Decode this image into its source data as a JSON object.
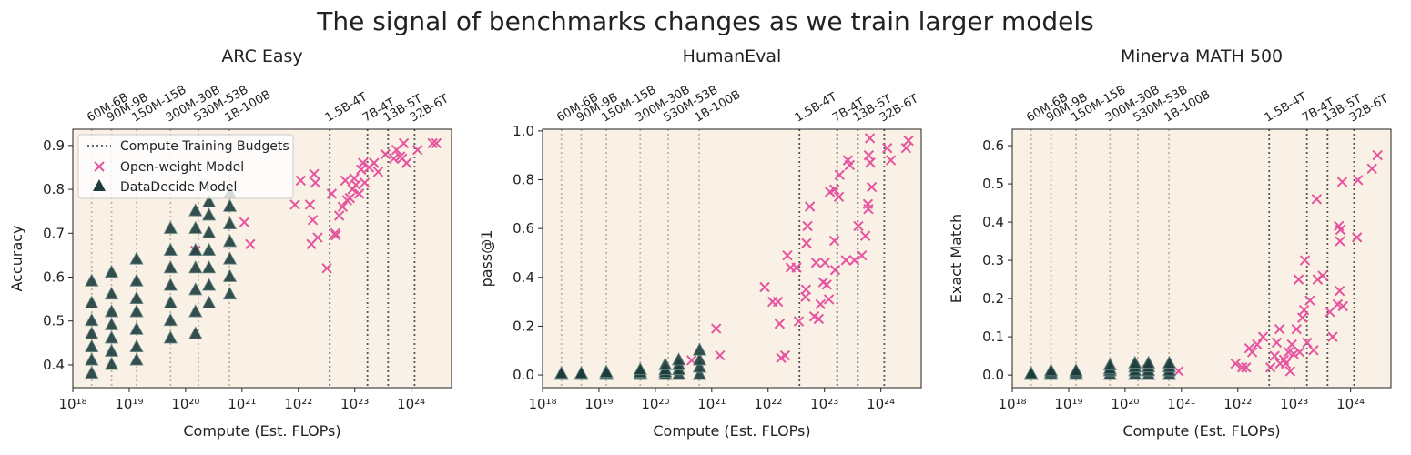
{
  "title": "The signal of benchmarks changes as we train larger models",
  "budget_label": "Compute Training Budgets",
  "budgets": [
    {
      "value": 2.16e+18,
      "label": "60M-6B",
      "color": "#c4b4a4"
    },
    {
      "value": 4.86e+18,
      "label": "90M-9B",
      "color": "#c4b4a4"
    },
    {
      "value": 1.35e+19,
      "label": "150M-15B",
      "color": "#c4b4a4"
    },
    {
      "value": 5.4e+19,
      "label": "300M-30B",
      "color": "#c4b4a4"
    },
    {
      "value": 1.69e+20,
      "label": "530M-53B",
      "color": "#c4b4a4"
    },
    {
      "value": 6e+20,
      "label": "1B-100B",
      "color": "#c4b4a4"
    },
    {
      "value": 3.6e+22,
      "label": "1.5B-4T",
      "color": "#555555"
    },
    {
      "value": 1.68e+23,
      "label": "7B-4T",
      "color": "#555555"
    },
    {
      "value": 3.9e+23,
      "label": "13B-5T",
      "color": "#555555"
    },
    {
      "value": 1.15e+24,
      "label": "32B-6T",
      "color": "#555555"
    }
  ],
  "chart_data": [
    {
      "type": "scatter",
      "title": "ARC Easy",
      "xlabel": "Compute (Est. FLOPs)",
      "ylabel": "Accuracy",
      "xscale": "log",
      "xlim": [
        1e+18,
        5.2e+24
      ],
      "xticks": [
        {
          "value": 1e+18,
          "label": "10¹⁸"
        },
        {
          "value": 1e+19,
          "label": "10¹⁹"
        },
        {
          "value": 1e+20,
          "label": "10²⁰"
        },
        {
          "value": 1e+21,
          "label": "10²¹"
        },
        {
          "value": 1e+22,
          "label": "10²²"
        },
        {
          "value": 1e+23,
          "label": "10²³"
        },
        {
          "value": 1e+24,
          "label": "10²⁴"
        }
      ],
      "ylim": [
        0.348,
        0.937
      ],
      "yticks": [
        0.4,
        0.5,
        0.6,
        0.7,
        0.8,
        0.9
      ],
      "legend": "upper left",
      "background": "#f9f0e6",
      "series": [
        {
          "name": "Open-weight Model",
          "marker": "x",
          "color": "#e5559f",
          "x": [
            1.5e+20,
            1.1e+21,
            1.4e+21,
            8.7e+21,
            1.1e+22,
            1.6e+22,
            1.7e+22,
            1.8e+22,
            1.9e+22,
            2e+22,
            2.2e+22,
            3.2e+22,
            3.9e+22,
            4.5e+22,
            4.6e+22,
            5.3e+22,
            6.1e+22,
            6.8e+22,
            7.3e+22,
            8.2e+22,
            9.1e+22,
            9.8e+22,
            1.05e+23,
            1.2e+23,
            1.3e+23,
            1.4e+23,
            1.5e+23,
            1.8e+23,
            2.2e+23,
            2.6e+23,
            3.5e+23,
            4.9e+23,
            5.5e+23,
            6.4e+23,
            6.9e+23,
            7.4e+23,
            8.3e+23,
            1.3e+24,
            2.4e+24,
            2.8e+24
          ],
          "values": [
            0.66,
            0.725,
            0.675,
            0.765,
            0.82,
            0.765,
            0.675,
            0.73,
            0.835,
            0.815,
            0.69,
            0.62,
            0.79,
            0.7,
            0.695,
            0.74,
            0.76,
            0.82,
            0.775,
            0.78,
            0.8,
            0.825,
            0.81,
            0.79,
            0.845,
            0.86,
            0.815,
            0.85,
            0.86,
            0.84,
            0.88,
            0.87,
            0.89,
            0.875,
            0.87,
            0.905,
            0.86,
            0.89,
            0.905,
            0.905
          ]
        },
        {
          "name": "DataDecide Model",
          "marker": "triangle",
          "color": "#1d3c3c",
          "x": [
            2.16e+18,
            2.16e+18,
            2.16e+18,
            2.16e+18,
            2.16e+18,
            2.16e+18,
            2.16e+18,
            4.86e+18,
            4.86e+18,
            4.86e+18,
            4.86e+18,
            4.86e+18,
            4.86e+18,
            4.86e+18,
            1.35e+19,
            1.35e+19,
            1.35e+19,
            1.35e+19,
            1.35e+19,
            1.35e+19,
            1.35e+19,
            5.4e+19,
            5.4e+19,
            5.4e+19,
            5.4e+19,
            5.4e+19,
            5.4e+19,
            5.4e+19,
            1.5e+20,
            1.5e+20,
            1.5e+20,
            1.5e+20,
            1.5e+20,
            1.5e+20,
            1.5e+20,
            2.6e+20,
            2.6e+20,
            2.6e+20,
            2.6e+20,
            2.6e+20,
            2.6e+20,
            2.6e+20,
            6.1e+20,
            6.1e+20,
            6.1e+20,
            6.1e+20,
            6.1e+20,
            6.1e+20,
            6.1e+20
          ],
          "values": [
            0.38,
            0.41,
            0.44,
            0.47,
            0.5,
            0.54,
            0.59,
            0.4,
            0.43,
            0.46,
            0.49,
            0.52,
            0.56,
            0.61,
            0.41,
            0.44,
            0.48,
            0.52,
            0.55,
            0.59,
            0.64,
            0.46,
            0.5,
            0.54,
            0.58,
            0.62,
            0.66,
            0.71,
            0.47,
            0.52,
            0.57,
            0.62,
            0.66,
            0.71,
            0.75,
            0.54,
            0.58,
            0.62,
            0.66,
            0.7,
            0.74,
            0.77,
            0.56,
            0.6,
            0.64,
            0.68,
            0.72,
            0.76,
            0.79
          ]
        }
      ]
    },
    {
      "type": "scatter",
      "title": "HumanEval",
      "xlabel": "Compute (Est. FLOPs)",
      "ylabel": "pass@1",
      "xscale": "log",
      "xlim": [
        1e+18,
        5.2e+24
      ],
      "xticks": [
        {
          "value": 1e+18,
          "label": "10¹⁸"
        },
        {
          "value": 1e+19,
          "label": "10¹⁹"
        },
        {
          "value": 1e+20,
          "label": "10²⁰"
        },
        {
          "value": 1e+21,
          "label": "10²¹"
        },
        {
          "value": 1e+22,
          "label": "10²²"
        },
        {
          "value": 1e+23,
          "label": "10²³"
        },
        {
          "value": 1e+24,
          "label": "10²⁴"
        }
      ],
      "ylim": [
        -0.052,
        1.007
      ],
      "yticks": [
        {
          "value": 0,
          "label": "0.0"
        },
        0.2,
        0.4,
        0.6,
        0.8,
        {
          "value": 1,
          "label": "1.0"
        }
      ],
      "background": "#f9f0e6",
      "series": [
        {
          "name": "Open-weight Model",
          "marker": "x",
          "color": "#e5559f",
          "x": [
            4.4e+20,
            1.2e+21,
            1.4e+21,
            8.7e+21,
            1.2e+22,
            1.5e+22,
            1.6e+22,
            1.7e+22,
            2e+22,
            2.2e+22,
            2.5e+22,
            3.2e+22,
            3.5e+22,
            4.7e+22,
            4.8e+22,
            5e+22,
            5.5e+22,
            4.6e+22,
            6.6e+22,
            7.1e+22,
            7.9e+22,
            8.5e+22,
            9.5e+22,
            1.02e+23,
            1.1e+23,
            1.2e+23,
            1.25e+23,
            1.5e+23,
            1.5e+23,
            1.55e+23,
            1.8e+23,
            1.85e+23,
            2.4e+23,
            2.6e+23,
            2.8e+23,
            3.4e+23,
            4e+23,
            4.6e+23,
            5.3e+23,
            5.9e+23,
            6e+23,
            6.1e+23,
            6.4e+23,
            6.5e+23,
            6.9e+23,
            1.3e+24,
            1.5e+24,
            2.8e+24,
            3.1e+24
          ],
          "values": [
            0.06,
            0.19,
            0.08,
            0.36,
            0.3,
            0.3,
            0.21,
            0.07,
            0.08,
            0.49,
            0.44,
            0.44,
            0.22,
            0.35,
            0.54,
            0.61,
            0.69,
            0.32,
            0.24,
            0.46,
            0.23,
            0.29,
            0.38,
            0.46,
            0.37,
            0.31,
            0.75,
            0.76,
            0.55,
            0.43,
            0.73,
            0.82,
            0.47,
            0.88,
            0.86,
            0.47,
            0.61,
            0.49,
            0.57,
            0.7,
            0.68,
            0.9,
            0.97,
            0.87,
            0.77,
            0.93,
            0.88,
            0.93,
            0.96
          ]
        },
        {
          "name": "DataDecide Model",
          "marker": "triangle",
          "color": "#1d3c3c",
          "x": [
            2.16e+18,
            2.16e+18,
            2.16e+18,
            2.16e+18,
            4.86e+18,
            4.86e+18,
            4.86e+18,
            4.86e+18,
            1.35e+19,
            1.35e+19,
            1.35e+19,
            1.35e+19,
            5.4e+19,
            5.4e+19,
            5.4e+19,
            5.4e+19,
            1.5e+20,
            1.5e+20,
            1.5e+20,
            1.5e+20,
            2.6e+20,
            2.6e+20,
            2.6e+20,
            2.6e+20,
            6.1e+20,
            6.1e+20,
            6.1e+20,
            6.1e+20
          ],
          "values": [
            0,
            0,
            0,
            0.005,
            0,
            0,
            0,
            0.005,
            0,
            0,
            0.005,
            0.01,
            0,
            0.005,
            0.01,
            0.02,
            0,
            0.01,
            0.02,
            0.04,
            0,
            0.02,
            0.04,
            0.06,
            0,
            0.03,
            0.06,
            0.1
          ]
        }
      ]
    },
    {
      "type": "scatter",
      "title": "Minerva MATH 500",
      "xlabel": "Compute (Est. FLOPs)",
      "ylabel": "Exact Match",
      "xscale": "log",
      "xlim": [
        1e+18,
        5.2e+24
      ],
      "xticks": [
        {
          "value": 1e+18,
          "label": "10¹⁸"
        },
        {
          "value": 1e+19,
          "label": "10¹⁹"
        },
        {
          "value": 1e+20,
          "label": "10²⁰"
        },
        {
          "value": 1e+21,
          "label": "10²¹"
        },
        {
          "value": 1e+22,
          "label": "10²²"
        },
        {
          "value": 1e+23,
          "label": "10²³"
        },
        {
          "value": 1e+24,
          "label": "10²⁴"
        }
      ],
      "ylim": [
        -0.033,
        0.643
      ],
      "yticks": [
        {
          "value": 0,
          "label": "0.0"
        },
        0.1,
        0.2,
        0.3,
        0.4,
        0.5,
        0.6
      ],
      "background": "#f9f0e6",
      "series": [
        {
          "name": "Open-weight Model",
          "marker": "x",
          "color": "#e5559f",
          "x": [
            2.5e+20,
            8.9e+20,
            9.1e+21,
            1.2e+22,
            1.4e+22,
            1.6e+22,
            1.8e+22,
            2.2e+22,
            2.8e+22,
            3.8e+22,
            4.5e+22,
            4.9e+22,
            5.5e+22,
            5.6e+22,
            6.6e+22,
            7.1e+22,
            7.9e+22,
            8.5e+22,
            9.1e+22,
            9.8e+22,
            1.1e+23,
            1.2e+23,
            1.25e+23,
            1.4e+23,
            1.5e+23,
            1.55e+23,
            1.7e+23,
            1.9e+23,
            2.2e+23,
            2.5e+23,
            2.6e+23,
            3.2e+23,
            4.3e+23,
            4.8e+23,
            5.9e+23,
            6.2e+23,
            6.4e+23,
            6.5e+23,
            6.6e+23,
            7.1e+23,
            7.3e+23,
            1.3e+24,
            1.35e+24,
            2.4e+24,
            3e+24
          ],
          "values": [
            0.015,
            0.01,
            0.03,
            0.02,
            0.02,
            0.07,
            0.06,
            0.08,
            0.1,
            0.02,
            0.05,
            0.085,
            0.12,
            0.03,
            0.04,
            0.03,
            0.06,
            0.01,
            0.08,
            0.055,
            0.12,
            0.25,
            0.06,
            0.15,
            0.17,
            0.3,
            0.085,
            0.195,
            0.065,
            0.46,
            0.25,
            0.26,
            0.165,
            0.1,
            0.185,
            0.39,
            0.22,
            0.35,
            0.38,
            0.505,
            0.18,
            0.36,
            0.51,
            0.54,
            0.575
          ]
        },
        {
          "name": "DataDecide Model",
          "marker": "triangle",
          "color": "#1d3c3c",
          "x": [
            2.16e+18,
            2.16e+18,
            2.16e+18,
            2.16e+18,
            4.86e+18,
            4.86e+18,
            4.86e+18,
            4.86e+18,
            1.35e+19,
            1.35e+19,
            1.35e+19,
            1.35e+19,
            5.4e+19,
            5.4e+19,
            5.4e+19,
            5.4e+19,
            1.5e+20,
            1.5e+20,
            1.5e+20,
            1.5e+20,
            2.6e+20,
            2.6e+20,
            2.6e+20,
            2.6e+20,
            6.1e+20,
            6.1e+20,
            6.1e+20,
            6.1e+20
          ],
          "values": [
            0,
            0,
            0,
            0.003,
            0,
            0,
            0.005,
            0.01,
            0,
            0,
            0.005,
            0.01,
            0,
            0.01,
            0.015,
            0.025,
            0,
            0.01,
            0.02,
            0.03,
            0,
            0.01,
            0.02,
            0.03,
            0,
            0.01,
            0.02,
            0.03
          ]
        }
      ]
    }
  ]
}
